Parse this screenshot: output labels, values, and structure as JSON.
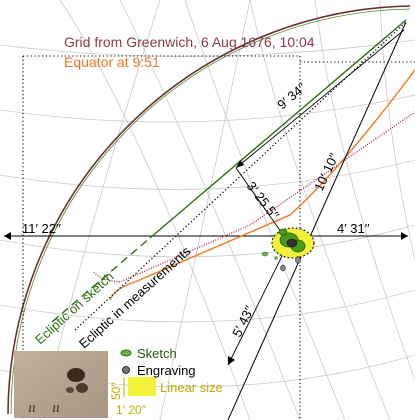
{
  "legend": {
    "grid_title": "Grid from Greenwich, 6 Aug 1676, 10:04",
    "equator_title": "Equator at 9:51",
    "sketch": "Sketch",
    "engraving": "Engraving",
    "linear_size": "Linear size"
  },
  "measurements": {
    "top_diagonal": "9′ 34′′",
    "right_diagonal": "10′ 10′′",
    "small_vertical": "3′ 25.5′′",
    "left_horizontal": "11′ 22′′",
    "right_horizontal": "4′ 31′′",
    "bottom_diagonal": "5′ 43′′",
    "scale_vertical": "50′′",
    "scale_horizontal": "1′ 20′′"
  },
  "line_labels": {
    "ecliptic_sketch": "Ecliptic on sketch",
    "ecliptic_measurements": "Ecliptic in measurements"
  },
  "colors": {
    "grid_title": "#8b3a4a",
    "equator": "#f07820",
    "sketch": "#3a7a1a",
    "ecliptic_measure": "#000000",
    "red_curve": "#b0203a",
    "grid": "#c8c8c8",
    "yellow": "#f2f23a",
    "linear_size_text": "#c8a800"
  }
}
